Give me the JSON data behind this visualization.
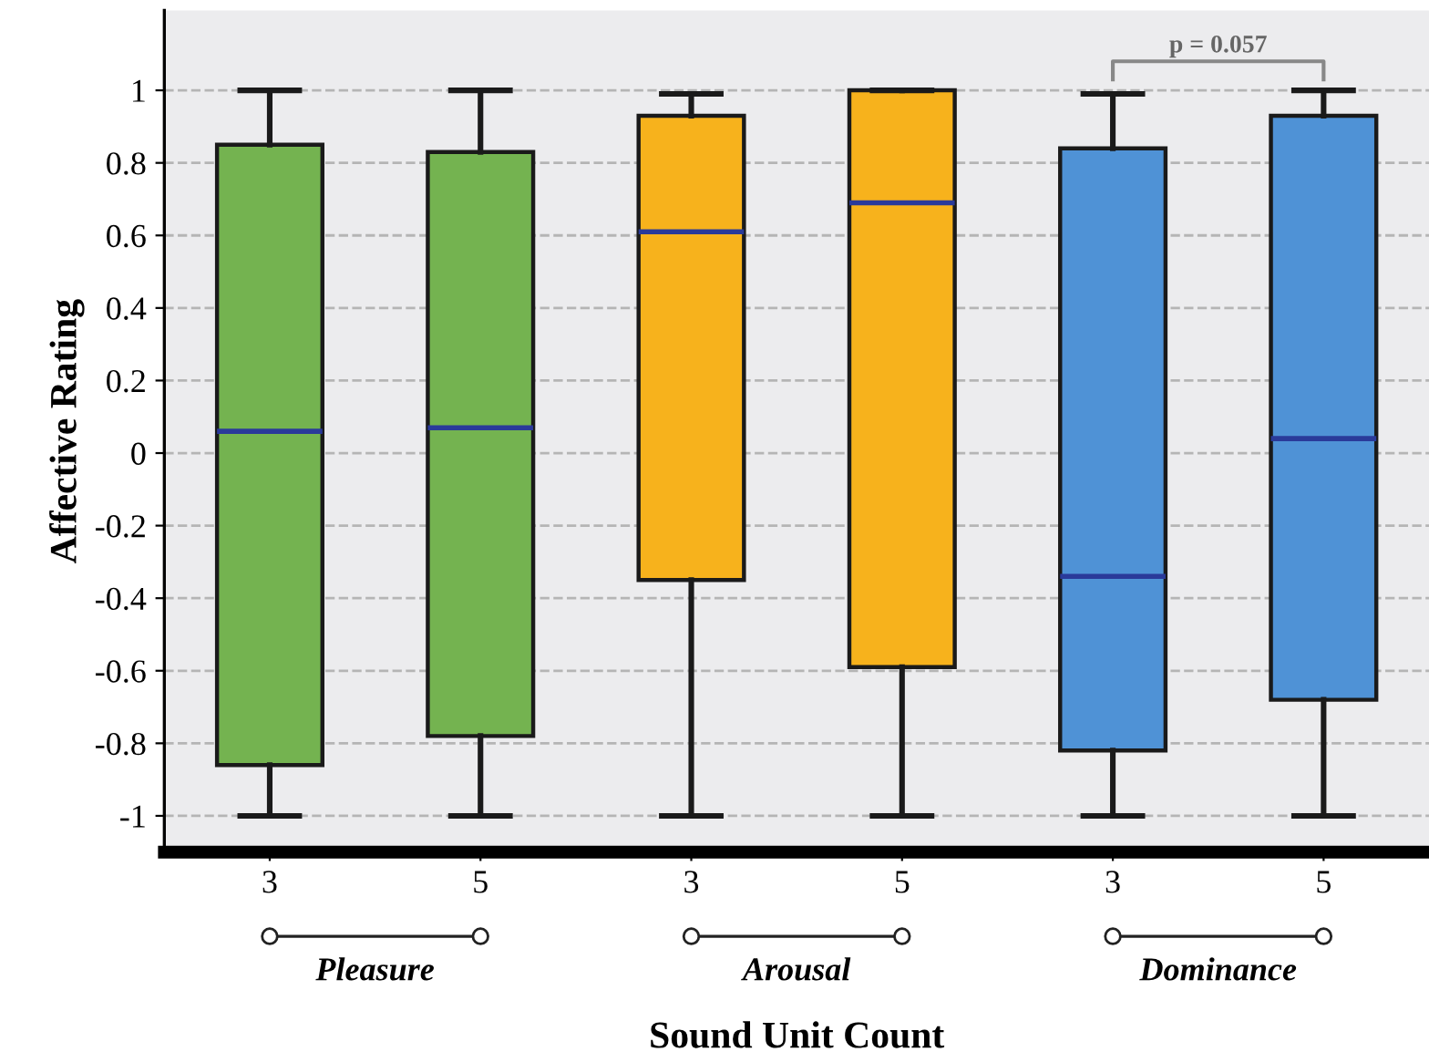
{
  "chart_data": {
    "type": "box",
    "xlabel": "Sound Unit Count",
    "ylabel": "Affective Rating",
    "categories": [
      "3",
      "5",
      "3",
      "5",
      "3",
      "5"
    ],
    "boxes": [
      {
        "low": -1,
        "q1": -0.86,
        "median": 0.06,
        "q3": 0.85,
        "high": 1
      },
      {
        "low": -1,
        "q1": -0.78,
        "median": 0.07,
        "q3": 0.83,
        "high": 1
      },
      {
        "low": -1,
        "q1": -0.35,
        "median": 0.61,
        "q3": 0.93,
        "high": 0.99
      },
      {
        "low": -1,
        "q1": -0.59,
        "median": 0.69,
        "q3": 1.0,
        "high": 1
      },
      {
        "low": -1,
        "q1": -0.82,
        "median": -0.34,
        "q3": 0.84,
        "high": 0.99
      },
      {
        "low": -1,
        "q1": -0.68,
        "median": 0.04,
        "q3": 0.93,
        "high": 1
      }
    ],
    "colors": [
      "#74b350",
      "#74b350",
      "#f7b21c",
      "#f7b21c",
      "#4f92d6",
      "#4f92d6"
    ],
    "ylim": [
      -1.1,
      1.22
    ],
    "yticks": [
      -1,
      {
        "value": -0.8,
        "label": "-0.8"
      },
      {
        "value": -0.6,
        "label": "-0.6"
      },
      {
        "value": -0.4,
        "label": "-0.4"
      },
      {
        "value": -0.2,
        "label": "-0.2"
      },
      0,
      0.2,
      0.4,
      0.6,
      0.8,
      1
    ],
    "grid": "y",
    "annotations": [
      "Pleasure",
      "Arousal",
      "Dominance",
      "p = 0.057"
    ]
  }
}
